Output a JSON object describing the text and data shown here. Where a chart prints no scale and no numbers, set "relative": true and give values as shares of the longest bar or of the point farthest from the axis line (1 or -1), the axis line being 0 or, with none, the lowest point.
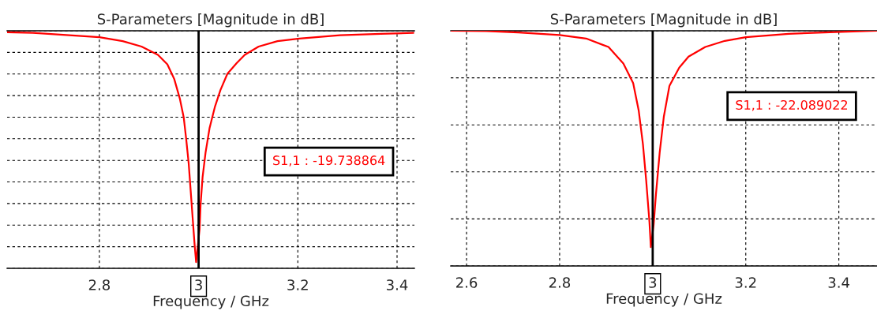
{
  "chart_data": [
    {
      "type": "line",
      "title": "S-Parameters [Magnitude in dB]",
      "xlabel": "Frequency / GHz",
      "relative": true,
      "grid": true,
      "tick_labels": "x",
      "line_style": "solid",
      "xlim": [
        2.614,
        3.435
      ],
      "xticks": [
        2.8,
        3,
        3.2,
        3.4
      ],
      "x": [
        2.614,
        2.666,
        2.721,
        2.8,
        2.847,
        2.885,
        2.918,
        2.937,
        2.951,
        2.962,
        2.97,
        2.975,
        2.98,
        2.984,
        2.988,
        2.992,
        2.995,
        3.002,
        3.004,
        3.008,
        3.014,
        3.022,
        3.033,
        3.044,
        3.058,
        3.077,
        3.093,
        3.121,
        3.159,
        3.203,
        3.285,
        3.367,
        3.433
      ],
      "series": [
        {
          "color": "#ff0000",
          "values": [
            1.0,
            0.997,
            0.99,
            0.979,
            0.962,
            0.939,
            0.904,
            0.864,
            0.801,
            0.72,
            0.639,
            0.547,
            0.444,
            0.329,
            0.213,
            0.098,
            0.026,
            0.167,
            0.271,
            0.386,
            0.49,
            0.593,
            0.685,
            0.755,
            0.824,
            0.87,
            0.904,
            0.939,
            0.962,
            0.973,
            0.987,
            0.993,
            0.997
          ]
        }
      ],
      "ref_lines": [
        {
          "axis": "x",
          "value": 3,
          "color": "#000000",
          "line_style": "solid"
        }
      ],
      "annotations": [
        "S1,1 : -19.738864"
      ]
    },
    {
      "type": "line",
      "title": "S-Parameters [Magnitude in dB]",
      "xlabel": "Frequency / GHz",
      "relative": true,
      "grid": true,
      "tick_labels": "x",
      "line_style": "solid",
      "xlim": [
        2.566,
        3.482
      ],
      "xticks": [
        2.6,
        2.8,
        3,
        3.2,
        3.4
      ],
      "x": [
        2.566,
        2.642,
        2.711,
        2.8,
        2.857,
        2.905,
        2.937,
        2.958,
        2.97,
        2.979,
        2.986,
        2.993,
        2.996,
        3.002,
        3.007,
        3.015,
        3.024,
        3.036,
        3.057,
        3.077,
        3.113,
        3.155,
        3.2,
        3.292,
        3.381,
        3.482
      ],
      "series": [
        {
          "color": "#ff0000",
          "values": [
            1.0,
            0.999,
            0.993,
            0.982,
            0.967,
            0.931,
            0.861,
            0.778,
            0.66,
            0.518,
            0.364,
            0.187,
            0.08,
            0.175,
            0.305,
            0.482,
            0.636,
            0.766,
            0.843,
            0.89,
            0.931,
            0.957,
            0.973,
            0.987,
            0.994,
            1.0
          ]
        }
      ],
      "ref_lines": [
        {
          "axis": "x",
          "value": 3,
          "color": "#000000",
          "line_style": "solid"
        }
      ],
      "annotations": [
        "S1,1 : -22.089022"
      ]
    }
  ]
}
